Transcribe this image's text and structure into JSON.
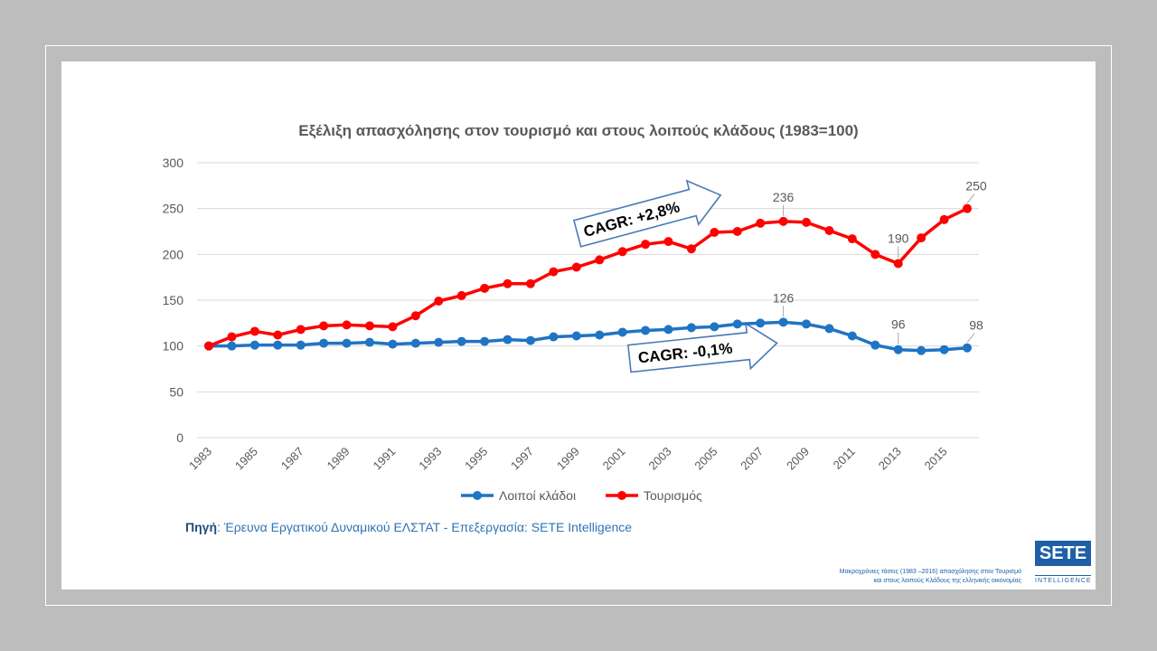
{
  "chart_data": {
    "type": "line",
    "title": "Εξέλιξη απασχόλησης στον τουρισμό και στους λοιπούς κλάδους (1983=100)",
    "xlabel": "",
    "ylabel": "",
    "ylim": [
      0,
      300
    ],
    "yticks": [
      0,
      50,
      100,
      150,
      200,
      250,
      300
    ],
    "xtick_labels": [
      "1983",
      "1985",
      "1987",
      "1989",
      "1991",
      "1993",
      "1995",
      "1997",
      "1999",
      "2001",
      "2003",
      "2005",
      "2007",
      "2009",
      "2011",
      "2013",
      "2015"
    ],
    "grid": true,
    "legend_position": "bottom",
    "x": [
      1983,
      1984,
      1985,
      1986,
      1987,
      1988,
      1989,
      1990,
      1991,
      1992,
      1993,
      1994,
      1995,
      1996,
      1997,
      1998,
      1999,
      2000,
      2001,
      2002,
      2003,
      2004,
      2005,
      2006,
      2007,
      2008,
      2009,
      2010,
      2011,
      2012,
      2013,
      2014,
      2015,
      2016
    ],
    "series": [
      {
        "name": "Λοιποί κλάδοι",
        "color": "#1f74c4",
        "values": [
          100,
          100,
          101,
          101,
          101,
          103,
          103,
          104,
          102,
          103,
          104,
          105,
          105,
          107,
          106,
          110,
          111,
          112,
          115,
          117,
          118,
          120,
          121,
          124,
          125,
          126,
          124,
          119,
          111,
          101,
          96,
          95,
          96,
          98
        ]
      },
      {
        "name": "Τουρισμός",
        "color": "#ff0000",
        "values": [
          100,
          110,
          116,
          112,
          118,
          122,
          123,
          122,
          121,
          133,
          149,
          155,
          163,
          168,
          168,
          181,
          186,
          194,
          203,
          211,
          214,
          206,
          224,
          225,
          234,
          236,
          235,
          226,
          217,
          200,
          190,
          218,
          238,
          250
        ]
      }
    ],
    "data_labels": [
      {
        "series": 0,
        "x": 2008,
        "text": "126"
      },
      {
        "series": 0,
        "x": 2013,
        "text": "96"
      },
      {
        "series": 0,
        "x": 2016,
        "text": "98"
      },
      {
        "series": 1,
        "x": 2008,
        "text": "236"
      },
      {
        "series": 1,
        "x": 2013,
        "text": "190"
      },
      {
        "series": 1,
        "x": 2016,
        "text": "250"
      }
    ],
    "annotations": [
      {
        "text": "CAGR: +2,8%",
        "series": 1
      },
      {
        "text": "CAGR: -0,1%",
        "series": 0
      }
    ]
  },
  "source": {
    "label": "Πηγή",
    "text": ": Έρευνα Εργατικού Δυναμικού ΕΛΣΤΑΤ - Επεξεργασία: SETE Intelligence"
  },
  "footer_note": {
    "line1": "Μακροχρόνιες τάσεις (1983 –2016) απασχόλησης στον Τουρισμό",
    "line2": "και στους λοιπούς Κλάδους της ελληνικής οικονομίας"
  },
  "logo": {
    "top": "SETE",
    "bottom": "INTELLIGENCE"
  },
  "colors": {
    "background": "#bdbdbd",
    "slide": "#ffffff",
    "grid": "#d9d9d9",
    "axis_text": "#595959",
    "brand": "#1f5fa6"
  }
}
